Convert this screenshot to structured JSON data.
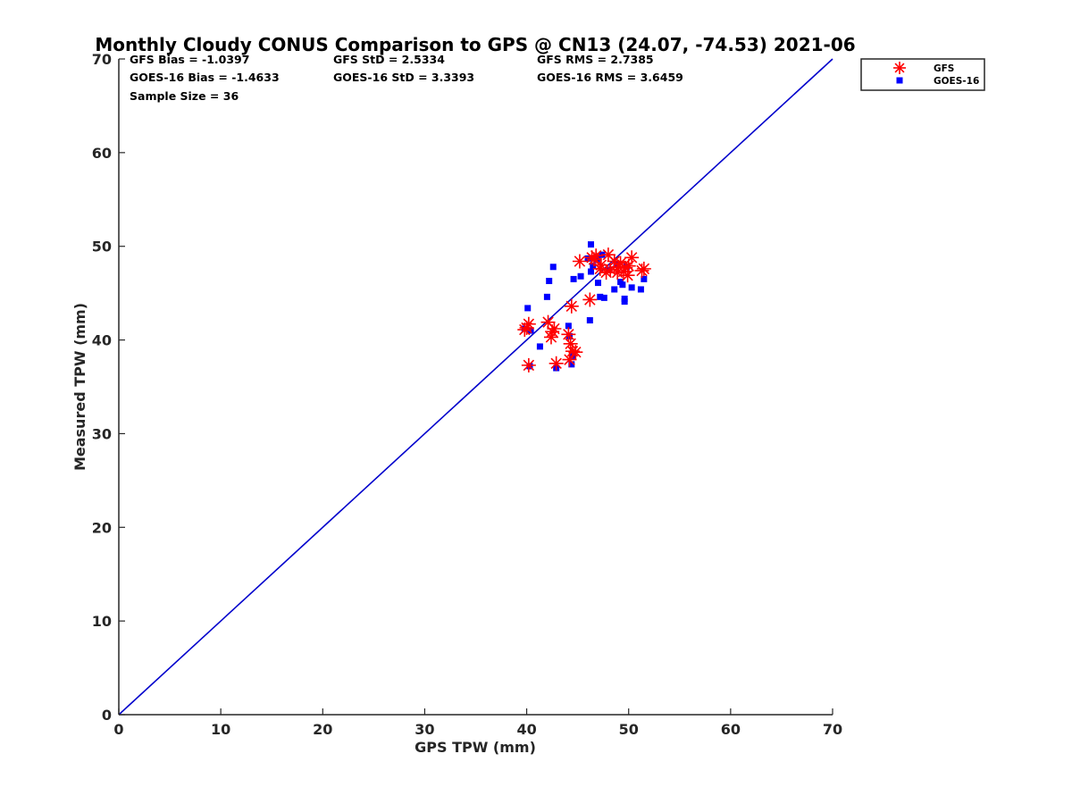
{
  "chart_data": {
    "type": "scatter",
    "title": "Monthly Cloudy CONUS Comparison to GPS @ CN13 (24.07, -74.53) 2021-06",
    "xlabel": "GPS TPW (mm)",
    "ylabel": "Measured TPW (mm)",
    "xlim": [
      0,
      70
    ],
    "ylim": [
      0,
      70
    ],
    "xticks": [
      "0",
      "10",
      "20",
      "30",
      "40",
      "50",
      "60",
      "70"
    ],
    "yticks": [
      "0",
      "10",
      "20",
      "30",
      "40",
      "50",
      "60",
      "70"
    ],
    "grid": false,
    "legend_position": "top-right, outside plot",
    "reference_line": {
      "x": [
        0,
        70
      ],
      "y": [
        0,
        70
      ],
      "color": "#0000cc"
    },
    "stats": [
      [
        "GFS Bias = -1.0397",
        "GFS StD = 2.5334",
        "GFS RMS = 2.7385"
      ],
      [
        "GOES-16 Bias = -1.4633",
        "GOES-16 StD = 3.3393",
        "GOES-16 RMS = 3.6459"
      ],
      [
        "Sample Size = 36",
        "",
        ""
      ]
    ],
    "series": [
      {
        "name": "GFS",
        "marker": "asterisk",
        "color": "#ff0000",
        "points": [
          [
            39.8,
            41.1
          ],
          [
            40.2,
            41.7
          ],
          [
            40.2,
            37.3
          ],
          [
            42.1,
            41.9
          ],
          [
            42.4,
            40.3
          ],
          [
            42.7,
            41.2
          ],
          [
            42.9,
            37.5
          ],
          [
            44.1,
            40.6
          ],
          [
            44.3,
            39.6
          ],
          [
            44.4,
            43.6
          ],
          [
            44.5,
            38.8
          ],
          [
            44.2,
            37.9
          ],
          [
            45.2,
            48.4
          ],
          [
            46.2,
            44.3
          ],
          [
            46.4,
            48.8
          ],
          [
            46.8,
            49.0
          ],
          [
            47.3,
            48.0
          ],
          [
            47.8,
            47.2
          ],
          [
            48.0,
            49.1
          ],
          [
            48.6,
            48.4
          ],
          [
            49.0,
            47.8
          ],
          [
            49.2,
            48.2
          ],
          [
            49.5,
            47.3
          ],
          [
            49.9,
            46.9
          ],
          [
            50.3,
            48.8
          ],
          [
            51.3,
            47.4
          ],
          [
            51.5,
            47.6
          ],
          [
            46.6,
            48.6
          ],
          [
            47.2,
            47.6
          ],
          [
            48.9,
            47.2
          ],
          [
            49.7,
            47.7
          ],
          [
            44.8,
            38.7
          ],
          [
            42.5,
            40.9
          ],
          [
            40.0,
            41.3
          ],
          [
            48.2,
            47.5
          ],
          [
            50.0,
            47.9
          ]
        ]
      },
      {
        "name": "GOES-16",
        "marker": "square",
        "color": "#0000ff",
        "points": [
          [
            39.8,
            41.2
          ],
          [
            40.1,
            43.4
          ],
          [
            40.3,
            37.2
          ],
          [
            40.4,
            41.0
          ],
          [
            41.3,
            39.3
          ],
          [
            42.0,
            44.6
          ],
          [
            42.2,
            46.3
          ],
          [
            42.6,
            47.8
          ],
          [
            42.9,
            37.0
          ],
          [
            44.1,
            41.5
          ],
          [
            44.2,
            40.4
          ],
          [
            44.4,
            37.4
          ],
          [
            44.5,
            38.3
          ],
          [
            44.6,
            46.5
          ],
          [
            45.3,
            46.8
          ],
          [
            46.2,
            42.1
          ],
          [
            46.3,
            50.2
          ],
          [
            46.3,
            47.3
          ],
          [
            46.5,
            47.9
          ],
          [
            46.9,
            48.6
          ],
          [
            47.0,
            46.1
          ],
          [
            47.2,
            44.6
          ],
          [
            47.4,
            49.1
          ],
          [
            47.6,
            44.5
          ],
          [
            48.1,
            47.5
          ],
          [
            48.6,
            45.4
          ],
          [
            49.2,
            46.2
          ],
          [
            49.4,
            45.9
          ],
          [
            49.6,
            44.4
          ],
          [
            49.6,
            44.1
          ],
          [
            49.8,
            47.8
          ],
          [
            50.3,
            45.6
          ],
          [
            51.2,
            45.4
          ],
          [
            51.5,
            46.5
          ],
          [
            48.8,
            48.1
          ],
          [
            46.0,
            48.7
          ]
        ]
      }
    ]
  }
}
